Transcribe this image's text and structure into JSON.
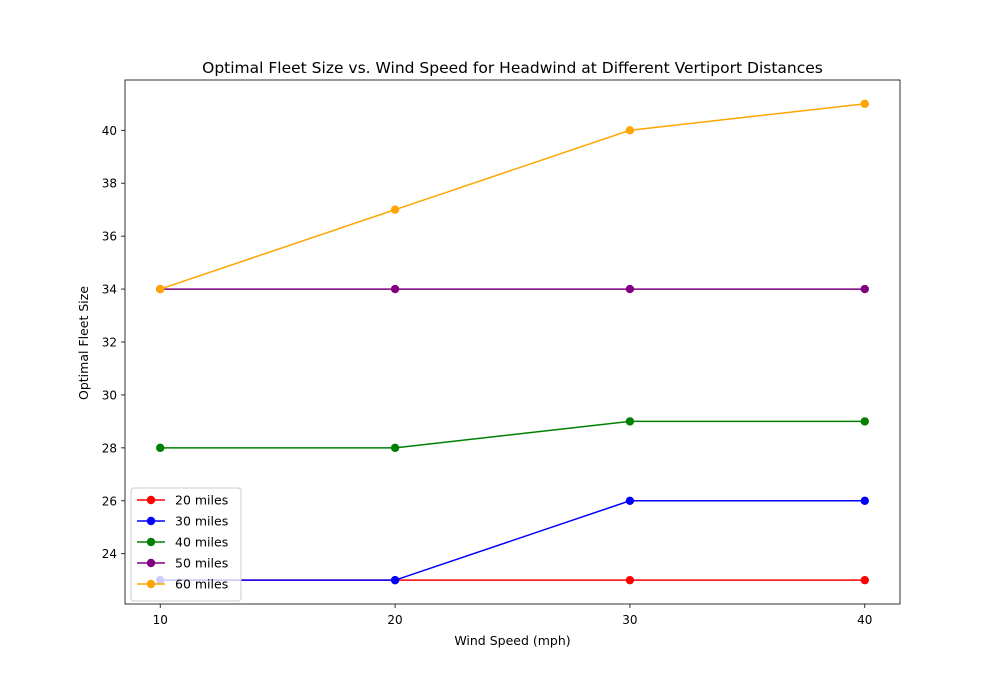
{
  "chart_data": {
    "type": "line",
    "title": "Optimal Fleet Size vs. Wind Speed for Headwind at Different Vertiport Distances",
    "xlabel": "Wind Speed (mph)",
    "ylabel": "Optimal Fleet Size",
    "x": [
      10,
      20,
      30,
      40
    ],
    "x_ticks": [
      "10",
      "20",
      "30",
      "40"
    ],
    "y_ticks": [
      "24",
      "26",
      "28",
      "30",
      "32",
      "34",
      "36",
      "38",
      "40"
    ],
    "xlim": [
      8.5,
      41.5
    ],
    "ylim": [
      22.1,
      41.9
    ],
    "grid": false,
    "legend_position": "lower-left",
    "series": [
      {
        "name": "20 miles",
        "color": "#ff0000",
        "values": [
          23,
          23,
          23,
          23
        ]
      },
      {
        "name": "30 miles",
        "color": "#0000ff",
        "values": [
          23,
          23,
          26,
          26
        ]
      },
      {
        "name": "40 miles",
        "color": "#008000",
        "values": [
          28,
          28,
          29,
          29
        ]
      },
      {
        "name": "50 miles",
        "color": "#800080",
        "values": [
          34,
          34,
          34,
          34
        ]
      },
      {
        "name": "60 miles",
        "color": "#ffa500",
        "values": [
          34,
          37,
          40,
          41
        ]
      }
    ]
  }
}
